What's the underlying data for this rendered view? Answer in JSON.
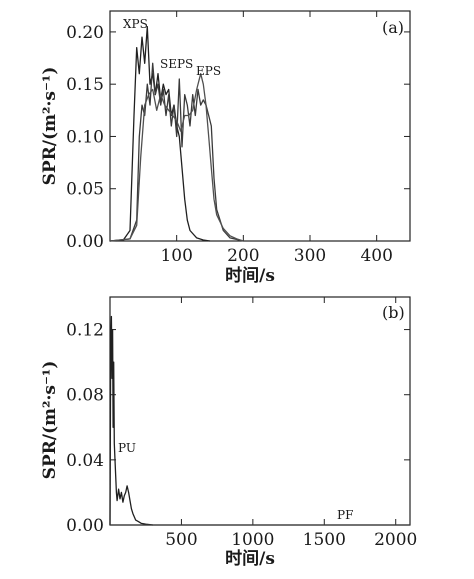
{
  "chart_data": [
    {
      "type": "line",
      "panel_label": "(a)",
      "xlabel": "时间/s",
      "ylabel": "SPR/(m²·s⁻¹)",
      "xlim": [
        0,
        450
      ],
      "ylim": [
        0,
        0.22
      ],
      "xticks": [
        100,
        200,
        300,
        400
      ],
      "xtick_labels": [
        "100",
        "200",
        "300",
        "400"
      ],
      "yticks": [
        0,
        0.05,
        0.1,
        0.15,
        0.2
      ],
      "ytick_labels": [
        "0.00",
        "0.05",
        "0.10",
        "0.15",
        "0.20"
      ],
      "grid": false,
      "series": [
        {
          "name": "XPS",
          "x": [
            0,
            20,
            30,
            36,
            40,
            44,
            48,
            52,
            56,
            60,
            64,
            68,
            72,
            76,
            80,
            84,
            88,
            92,
            96,
            100,
            104,
            108,
            112,
            116,
            120,
            130,
            140,
            150
          ],
          "y": [
            0,
            0.001,
            0.01,
            0.12,
            0.185,
            0.16,
            0.195,
            0.17,
            0.205,
            0.15,
            0.16,
            0.14,
            0.16,
            0.135,
            0.15,
            0.14,
            0.145,
            0.12,
            0.13,
            0.11,
            0.1,
            0.07,
            0.04,
            0.02,
            0.01,
            0.003,
            0.001,
            0
          ]
        },
        {
          "name": "SEPS",
          "x": [
            0,
            30,
            40,
            44,
            48,
            52,
            56,
            60,
            64,
            68,
            72,
            76,
            80,
            84,
            88,
            92,
            96,
            100,
            104,
            108,
            112,
            116,
            120,
            124,
            128,
            132,
            136,
            140,
            144,
            148,
            152,
            156,
            160,
            170,
            180,
            200
          ],
          "y": [
            0,
            0.002,
            0.02,
            0.1,
            0.13,
            0.12,
            0.15,
            0.13,
            0.17,
            0.14,
            0.15,
            0.13,
            0.145,
            0.12,
            0.14,
            0.11,
            0.13,
            0.1,
            0.155,
            0.09,
            0.14,
            0.13,
            0.11,
            0.14,
            0.12,
            0.145,
            0.13,
            0.135,
            0.13,
            0.12,
            0.11,
            0.06,
            0.03,
            0.01,
            0.003,
            0
          ]
        },
        {
          "name": "EPS",
          "x": [
            0,
            30,
            40,
            46,
            52,
            58,
            64,
            70,
            76,
            82,
            88,
            94,
            100,
            106,
            112,
            118,
            124,
            130,
            136,
            140,
            144,
            148,
            152,
            156,
            160,
            170,
            180,
            190,
            200
          ],
          "y": [
            0,
            0.002,
            0.015,
            0.08,
            0.13,
            0.14,
            0.145,
            0.125,
            0.14,
            0.13,
            0.125,
            0.12,
            0.115,
            0.105,
            0.12,
            0.12,
            0.125,
            0.145,
            0.16,
            0.15,
            0.13,
            0.1,
            0.07,
            0.04,
            0.025,
            0.012,
            0.005,
            0.002,
            0
          ]
        }
      ],
      "series_labels": [
        "XPS",
        "SEPS",
        "EPS"
      ]
    },
    {
      "type": "line",
      "panel_label": "(b)",
      "xlabel": "时间/s",
      "ylabel": "SPR/(m²·s⁻¹)",
      "xlim": [
        0,
        2100
      ],
      "ylim": [
        0,
        0.14
      ],
      "xticks": [
        500,
        1000,
        1500,
        2000
      ],
      "xtick_labels": [
        "500",
        "1000",
        "1500",
        "2000"
      ],
      "yticks": [
        0,
        0.04,
        0.08,
        0.12
      ],
      "ytick_labels": [
        "0.00",
        "0.04",
        "0.08",
        "0.12"
      ],
      "grid": false,
      "series": [
        {
          "name": "PU",
          "x": [
            0,
            5,
            10,
            14,
            18,
            22,
            26,
            30,
            35,
            40,
            45,
            50,
            60,
            70,
            80,
            90,
            100,
            110,
            120,
            130,
            140,
            150,
            160,
            170,
            180,
            200,
            220,
            250,
            280,
            300
          ],
          "y": [
            0.0,
            0.11,
            0.128,
            0.09,
            0.12,
            0.06,
            0.1,
            0.05,
            0.04,
            0.03,
            0.02,
            0.015,
            0.022,
            0.016,
            0.02,
            0.014,
            0.018,
            0.02,
            0.024,
            0.02,
            0.015,
            0.01,
            0.007,
            0.005,
            0.003,
            0.002,
            0.001,
            0.0005,
            0.0002,
            0
          ]
        },
        {
          "name": "PF",
          "x": [
            0,
            300,
            600,
            900,
            1200,
            1500,
            1800,
            2100
          ],
          "y": [
            0,
            0,
            0,
            0,
            0,
            0,
            0,
            0
          ]
        }
      ],
      "series_labels": [
        "PU",
        "PF"
      ]
    }
  ]
}
